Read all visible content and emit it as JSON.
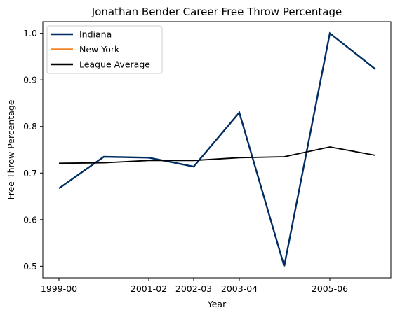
{
  "chart_data": {
    "type": "line",
    "title": "Jonathan Bender Career Free Throw Percentage",
    "xlabel": "Year",
    "ylabel": "Free Throw Percentage",
    "x_ticks": [
      "1999-00",
      "2001-02",
      "2002-03",
      "2003-04",
      "2005-06"
    ],
    "ylim": [
      0.475,
      1.025
    ],
    "y_ticks": [
      "0.5",
      "0.6",
      "0.7",
      "0.8",
      "0.9",
      "1.0"
    ],
    "grid": false,
    "legend_position": "top-left",
    "series": [
      {
        "name": "Indiana",
        "color": "#002d62",
        "points": [
          {
            "x": "1999-00",
            "y": 0.667
          },
          {
            "x": "2000-01",
            "y": 0.735
          },
          {
            "x": "2001-02",
            "y": 0.733
          },
          {
            "x": "2002-03",
            "y": 0.714
          },
          {
            "x": "2003-04",
            "y": 0.83
          },
          {
            "x": "2004-05",
            "y": 0.5
          },
          {
            "x": "2005-06",
            "y": 1.0
          },
          {
            "x": "2009-10",
            "y": 0.923
          }
        ]
      },
      {
        "name": "New York",
        "color": "#f58426",
        "points": []
      },
      {
        "name": "League Average",
        "color": "#000000",
        "points": [
          {
            "x": "1999-00",
            "y": 0.721
          },
          {
            "x": "2000-01",
            "y": 0.722
          },
          {
            "x": "2001-02",
            "y": 0.727
          },
          {
            "x": "2002-03",
            "y": 0.727
          },
          {
            "x": "2003-04",
            "y": 0.733
          },
          {
            "x": "2004-05",
            "y": 0.735
          },
          {
            "x": "2005-06",
            "y": 0.756
          },
          {
            "x": "2009-10",
            "y": 0.738
          }
        ]
      }
    ]
  }
}
